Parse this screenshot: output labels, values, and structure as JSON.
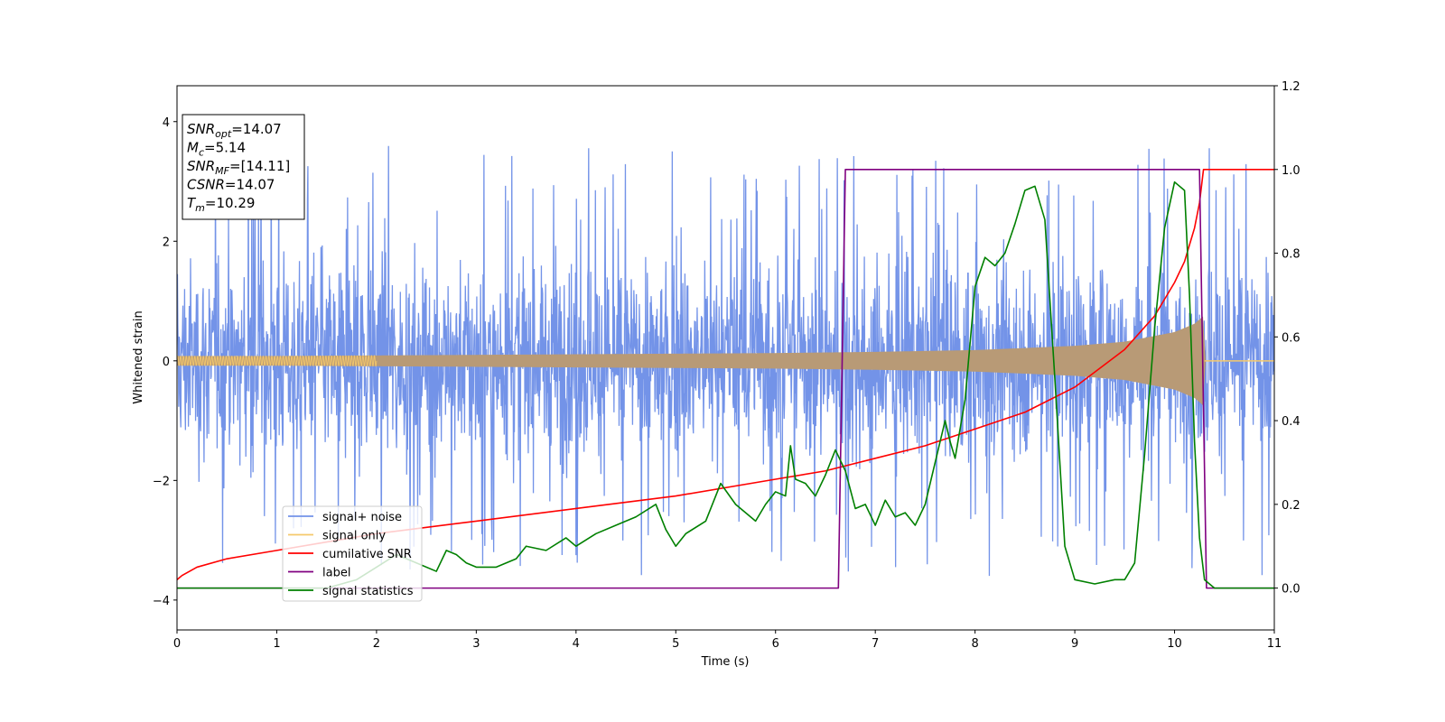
{
  "chart_data": {
    "type": "line",
    "xlabel": "Time (s)",
    "ylabel": "Whitened strain",
    "xlim": [
      0,
      11
    ],
    "ylim_left": [
      -4.5,
      4.6
    ],
    "ylim_right": [
      -0.1,
      1.2
    ],
    "x_ticks": [
      0,
      1,
      2,
      3,
      4,
      5,
      6,
      7,
      8,
      9,
      10,
      11
    ],
    "y_left_ticks": [
      -4,
      -2,
      0,
      2,
      4
    ],
    "y_right_ticks": [
      0.0,
      0.2,
      0.4,
      0.6,
      0.8,
      1.0,
      1.2
    ],
    "y_right_tick_labels": [
      "0.0",
      "0.2",
      "0.4",
      "0.6",
      "0.8",
      "1.0",
      "1.2"
    ],
    "grid": false,
    "legend_position": "lower-left",
    "info_box": {
      "position": "top-left",
      "lines": [
        {
          "base": "SNR",
          "sub": "opt",
          "value": "=14.07"
        },
        {
          "base": "M",
          "sub": "c",
          "value": "=5.14"
        },
        {
          "base": "SNR",
          "sub": "MF",
          "value": "=[14.11]"
        },
        {
          "base": "CSNR",
          "sub": "",
          "value": "=14.07"
        },
        {
          "base": "T",
          "sub": "m",
          "value": "=10.29"
        }
      ]
    },
    "series": [
      {
        "name": "signal+ noise",
        "color": "#7393e8",
        "axis": "left",
        "kind": "noise_band",
        "typical_amplitude": 1.5,
        "extreme_range": [
          -4.1,
          4.2
        ],
        "x_range": [
          0,
          11
        ]
      },
      {
        "name": "signal only",
        "color": "#f5c96b",
        "fill_color": "#b89a76",
        "axis": "left",
        "kind": "chirp_envelope",
        "envelope_x": [
          0,
          1,
          2,
          3,
          4,
          5,
          6,
          7,
          8,
          9,
          9.5,
          10,
          10.2,
          10.29,
          10.3,
          11
        ],
        "envelope_amp": [
          0.08,
          0.08,
          0.09,
          0.1,
          0.11,
          0.12,
          0.13,
          0.15,
          0.18,
          0.25,
          0.32,
          0.48,
          0.62,
          0.75,
          0.0,
          0.0
        ]
      },
      {
        "name": "cumilative SNR",
        "color": "#ff0000",
        "axis": "right",
        "x": [
          0,
          0.05,
          0.2,
          0.5,
          1,
          1.5,
          2,
          3,
          4,
          5,
          6,
          6.5,
          7,
          7.5,
          8,
          8.5,
          9,
          9.5,
          9.8,
          10,
          10.1,
          10.2,
          10.25,
          10.29,
          10.3,
          11
        ],
        "y": [
          0.02,
          0.03,
          0.05,
          0.07,
          0.09,
          0.11,
          0.13,
          0.16,
          0.19,
          0.22,
          0.26,
          0.28,
          0.31,
          0.34,
          0.38,
          0.42,
          0.48,
          0.57,
          0.65,
          0.73,
          0.78,
          0.86,
          0.92,
          1.0,
          1.0,
          1.0
        ]
      },
      {
        "name": "label",
        "color": "#800080",
        "axis": "right",
        "x": [
          0,
          6.63,
          6.7,
          10.25,
          10.32,
          11
        ],
        "y": [
          0.0,
          0.0,
          1.0,
          1.0,
          0.0,
          0.0
        ]
      },
      {
        "name": "signal statistics",
        "color": "#008000",
        "axis": "right",
        "x": [
          0,
          1.5,
          1.8,
          2.0,
          2.2,
          2.4,
          2.6,
          2.7,
          2.8,
          2.9,
          3.0,
          3.2,
          3.4,
          3.5,
          3.7,
          3.9,
          4.0,
          4.2,
          4.4,
          4.6,
          4.8,
          4.9,
          5.0,
          5.1,
          5.3,
          5.45,
          5.6,
          5.8,
          5.9,
          6.0,
          6.1,
          6.15,
          6.2,
          6.3,
          6.4,
          6.5,
          6.6,
          6.7,
          6.8,
          6.9,
          7.0,
          7.1,
          7.2,
          7.3,
          7.4,
          7.5,
          7.6,
          7.7,
          7.75,
          7.8,
          7.9,
          8.0,
          8.1,
          8.2,
          8.3,
          8.4,
          8.5,
          8.6,
          8.7,
          8.8,
          8.9,
          9.0,
          9.2,
          9.4,
          9.5,
          9.6,
          9.7,
          9.8,
          9.9,
          10.0,
          10.1,
          10.15,
          10.2,
          10.25,
          10.3,
          10.4,
          10.5,
          11
        ],
        "y": [
          0.0,
          0.0,
          0.02,
          0.05,
          0.08,
          0.06,
          0.04,
          0.09,
          0.08,
          0.06,
          0.05,
          0.05,
          0.07,
          0.1,
          0.09,
          0.12,
          0.1,
          0.13,
          0.15,
          0.17,
          0.2,
          0.14,
          0.1,
          0.13,
          0.16,
          0.25,
          0.2,
          0.16,
          0.2,
          0.23,
          0.22,
          0.34,
          0.26,
          0.25,
          0.22,
          0.27,
          0.33,
          0.28,
          0.19,
          0.2,
          0.15,
          0.21,
          0.17,
          0.18,
          0.15,
          0.2,
          0.3,
          0.4,
          0.35,
          0.31,
          0.45,
          0.72,
          0.79,
          0.77,
          0.8,
          0.87,
          0.95,
          0.96,
          0.88,
          0.5,
          0.1,
          0.02,
          0.01,
          0.02,
          0.02,
          0.06,
          0.32,
          0.62,
          0.86,
          0.97,
          0.95,
          0.7,
          0.35,
          0.12,
          0.02,
          0.0,
          0.0,
          0.0
        ]
      }
    ]
  }
}
